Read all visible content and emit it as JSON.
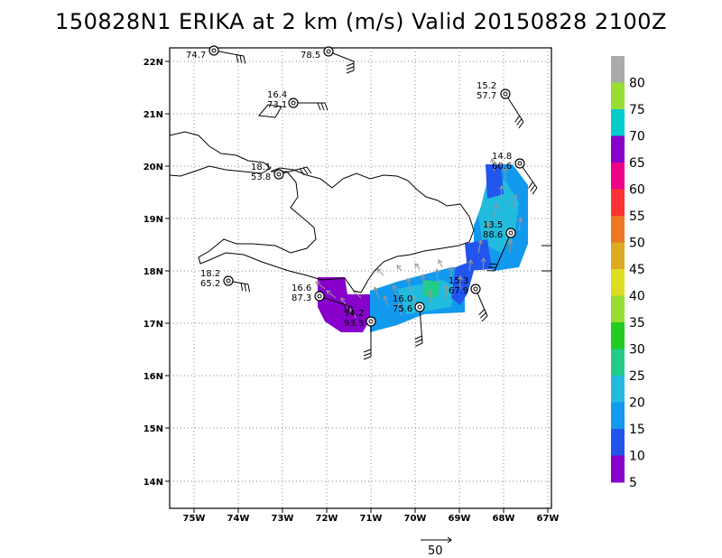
{
  "title": "150828N1 ERIKA at 2 km (m/s) Valid 20150828 2100Z",
  "map": {
    "lon_ticks": [
      "75W",
      "74W",
      "73W",
      "72W",
      "71W",
      "70W",
      "69W",
      "68W",
      "67W"
    ],
    "lat_ticks": [
      "22N",
      "21N",
      "20N",
      "19N",
      "18N",
      "17N",
      "16N",
      "15N",
      "14N"
    ],
    "grid": true
  },
  "colorbar": {
    "labels": [
      "80",
      "75",
      "70",
      "65",
      "60",
      "55",
      "50",
      "45",
      "40",
      "35",
      "30",
      "25",
      "20",
      "15",
      "10",
      "5"
    ],
    "colors": [
      "#aaaaaa",
      "#99dd33",
      "#00cccc",
      "#8800cc",
      "#ee0088",
      "#ff3333",
      "#ee7722",
      "#ddaa22",
      "#dddd22",
      "#99dd33",
      "#22cc22",
      "#22cc88",
      "#22bbdd",
      "#1199ee",
      "#2255ee",
      "#8800cc"
    ]
  },
  "storms": [
    {
      "a": "74.7",
      "b": ""
    },
    {
      "a": "78.5",
      "b": ""
    },
    {
      "a": "16.4",
      "b": "73.1"
    },
    {
      "a": "15.2",
      "b": "57.7"
    },
    {
      "a": "14.8",
      "b": "60.6"
    },
    {
      "a": "18.1",
      "b": "53.8"
    },
    {
      "a": "13.5",
      "b": "88.6"
    },
    {
      "a": "18.2",
      "b": "65.2"
    },
    {
      "a": "16.6",
      "b": "87.3"
    },
    {
      "a": "15.3",
      "b": "67.9"
    },
    {
      "a": "16.0",
      "b": "75.6"
    },
    {
      "a": "14.2",
      "b": "93.5"
    }
  ],
  "scale": {
    "label": "50"
  }
}
